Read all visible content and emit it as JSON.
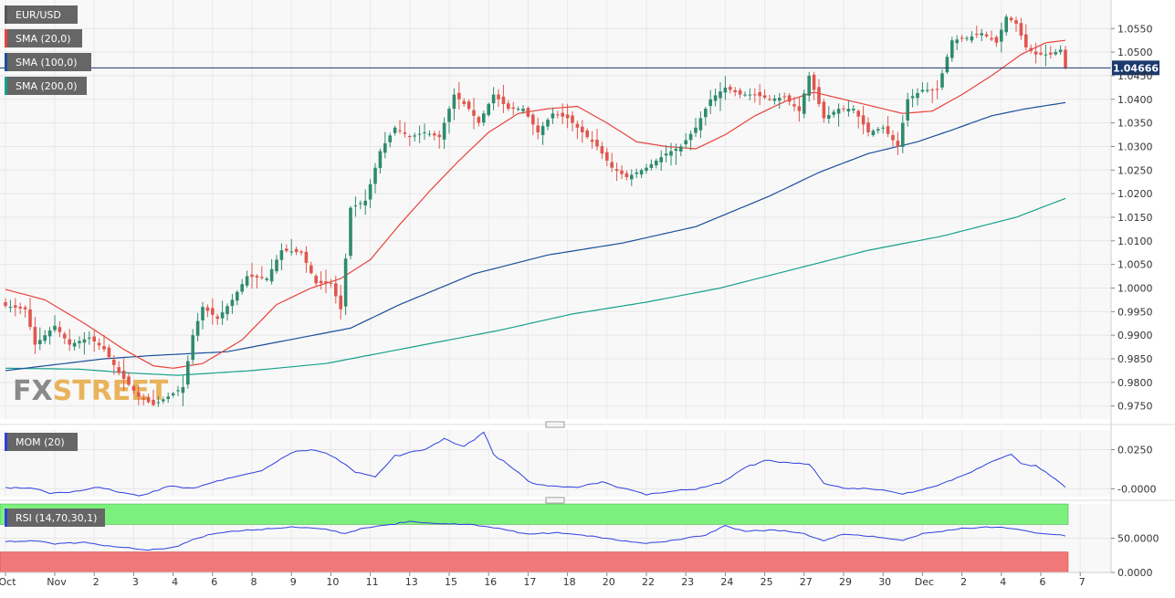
{
  "colors": {
    "bull": "#2e8b6e",
    "bear": "#e0564d",
    "sma20": "#e8433a",
    "sma100": "#1a4f9c",
    "sma200": "#17a08c",
    "mom": "#2f3fe0",
    "rsi": "#2f3fe0",
    "rsi_overbought": "#7cf07c",
    "rsi_oversold": "#f07878",
    "price_line": "#1a3a6e",
    "legend_bg": "#666666"
  },
  "watermark": {
    "fx": "FX",
    "street": "STREET"
  },
  "chart_data": [
    {
      "type": "candlestick",
      "instrument": "EUR/USD",
      "ylim": [
        0.973,
        1.0595
      ],
      "y_ticks": [
        "1.0550",
        "1.0500",
        "1.0450",
        "1.0400",
        "1.0350",
        "1.0300",
        "1.0250",
        "1.0200",
        "1.0150",
        "1.0100",
        "1.0050",
        "1.0000",
        "0.9950",
        "0.9900",
        "0.9850",
        "0.9800",
        "0.9750"
      ],
      "current_price": 1.04666,
      "current_price_label": "1.04666",
      "x_tick_labels": [
        {
          "label": "Oct",
          "i": 0
        },
        {
          "label": "Nov",
          "i": 10
        },
        {
          "label": "2",
          "i": 18
        },
        {
          "label": "3",
          "i": 26
        },
        {
          "label": "4",
          "i": 34
        },
        {
          "label": "6",
          "i": 42
        },
        {
          "label": "8",
          "i": 50
        },
        {
          "label": "9",
          "i": 58
        },
        {
          "label": "10",
          "i": 66
        },
        {
          "label": "11",
          "i": 74
        },
        {
          "label": "13",
          "i": 82
        },
        {
          "label": "15",
          "i": 90
        },
        {
          "label": "16",
          "i": 98
        },
        {
          "label": "17",
          "i": 106
        },
        {
          "label": "18",
          "i": 114
        },
        {
          "label": "20",
          "i": 122
        },
        {
          "label": "22",
          "i": 130
        },
        {
          "label": "23",
          "i": 138
        },
        {
          "label": "24",
          "i": 146
        },
        {
          "label": "25",
          "i": 154
        },
        {
          "label": "27",
          "i": 162
        },
        {
          "label": "29",
          "i": 170
        },
        {
          "label": "30",
          "i": 178
        },
        {
          "label": "Dec",
          "i": 186
        },
        {
          "label": "2",
          "i": 194
        },
        {
          "label": "4",
          "i": 202
        },
        {
          "label": "6",
          "i": 210
        },
        {
          "label": "7",
          "i": 218
        }
      ],
      "legend": [
        {
          "label": "EUR/USD",
          "color": "#555555"
        },
        {
          "label": "SMA (20,0)",
          "color": "#e8433a"
        },
        {
          "label": "SMA (100,0)",
          "color": "#1a4f9c"
        },
        {
          "label": "SMA (200,0)",
          "color": "#17a08c"
        }
      ],
      "close_anchors": [
        [
          0,
          0.9962
        ],
        [
          4,
          0.9955
        ],
        [
          6,
          0.988
        ],
        [
          10,
          0.992
        ],
        [
          13,
          0.988
        ],
        [
          17,
          0.9895
        ],
        [
          20,
          0.987
        ],
        [
          23,
          0.982
        ],
        [
          27,
          0.977
        ],
        [
          30,
          0.9752
        ],
        [
          33,
          0.977
        ],
        [
          36,
          0.979
        ],
        [
          38,
          0.99
        ],
        [
          40,
          0.996
        ],
        [
          43,
          0.9935
        ],
        [
          46,
          0.9975
        ],
        [
          49,
          1.0025
        ],
        [
          53,
          1.002
        ],
        [
          56,
          1.008
        ],
        [
          60,
          1.0075
        ],
        [
          63,
          1.001
        ],
        [
          66,
          1.001
        ],
        [
          68,
          0.9955
        ],
        [
          70,
          1.017
        ],
        [
          73,
          1.0185
        ],
        [
          76,
          1.029
        ],
        [
          79,
          1.034
        ],
        [
          82,
          1.032
        ],
        [
          85,
          1.033
        ],
        [
          88,
          1.032
        ],
        [
          91,
          1.041
        ],
        [
          94,
          1.038
        ],
        [
          96,
          1.035
        ],
        [
          99,
          1.041
        ],
        [
          102,
          1.038
        ],
        [
          105,
          1.038
        ],
        [
          108,
          1.033
        ],
        [
          111,
          1.037
        ],
        [
          114,
          1.036
        ],
        [
          117,
          1.033
        ],
        [
          120,
          1.03
        ],
        [
          123,
          1.0255
        ],
        [
          126,
          1.0235
        ],
        [
          130,
          1.0255
        ],
        [
          134,
          1.0285
        ],
        [
          137,
          1.03
        ],
        [
          140,
          1.034
        ],
        [
          143,
          1.04
        ],
        [
          146,
          1.0425
        ],
        [
          149,
          1.041
        ],
        [
          152,
          1.041
        ],
        [
          155,
          1.04
        ],
        [
          158,
          1.0405
        ],
        [
          161,
          1.0375
        ],
        [
          163,
          1.045
        ],
        [
          166,
          1.036
        ],
        [
          169,
          1.038
        ],
        [
          172,
          1.038
        ],
        [
          175,
          1.033
        ],
        [
          178,
          1.034
        ],
        [
          181,
          1.03
        ],
        [
          183,
          1.04
        ],
        [
          186,
          1.042
        ],
        [
          189,
          1.042
        ],
        [
          192,
          1.0525
        ],
        [
          195,
          1.053
        ],
        [
          198,
          1.054
        ],
        [
          201,
          1.052
        ],
        [
          203,
          1.0575
        ],
        [
          205,
          1.056
        ],
        [
          207,
          1.051
        ],
        [
          209,
          1.0495
        ],
        [
          212,
          1.0495
        ],
        [
          214,
          1.0505
        ],
        [
          215,
          1.0467
        ]
      ],
      "sma20_anchors": [
        [
          0,
          0.9997
        ],
        [
          8,
          0.9975
        ],
        [
          16,
          0.9925
        ],
        [
          24,
          0.987
        ],
        [
          30,
          0.9835
        ],
        [
          34,
          0.983
        ],
        [
          40,
          0.984
        ],
        [
          48,
          0.989
        ],
        [
          55,
          0.9965
        ],
        [
          62,
          1.0
        ],
        [
          68,
          1.002
        ],
        [
          74,
          1.006
        ],
        [
          80,
          1.0135
        ],
        [
          86,
          1.0205
        ],
        [
          92,
          1.027
        ],
        [
          98,
          1.033
        ],
        [
          104,
          1.037
        ],
        [
          110,
          1.038
        ],
        [
          116,
          1.0385
        ],
        [
          122,
          1.035
        ],
        [
          128,
          1.031
        ],
        [
          134,
          1.03
        ],
        [
          140,
          1.0295
        ],
        [
          146,
          1.0325
        ],
        [
          152,
          1.0365
        ],
        [
          158,
          1.0395
        ],
        [
          164,
          1.0415
        ],
        [
          170,
          1.04
        ],
        [
          176,
          1.0385
        ],
        [
          182,
          1.037
        ],
        [
          188,
          1.0375
        ],
        [
          194,
          1.041
        ],
        [
          200,
          1.045
        ],
        [
          206,
          1.0495
        ],
        [
          211,
          1.052
        ],
        [
          215,
          1.0525
        ]
      ],
      "sma100_anchors": [
        [
          0,
          0.9825
        ],
        [
          20,
          0.985
        ],
        [
          30,
          0.9857
        ],
        [
          45,
          0.9865
        ],
        [
          60,
          0.9895
        ],
        [
          70,
          0.9915
        ],
        [
          80,
          0.9965
        ],
        [
          95,
          1.003
        ],
        [
          110,
          1.007
        ],
        [
          125,
          1.0095
        ],
        [
          140,
          1.013
        ],
        [
          155,
          1.0195
        ],
        [
          165,
          1.0245
        ],
        [
          175,
          1.0285
        ],
        [
          185,
          1.031
        ],
        [
          192,
          1.0335
        ],
        [
          200,
          1.0365
        ],
        [
          207,
          1.038
        ],
        [
          215,
          1.0393
        ]
      ],
      "sma200_anchors": [
        [
          0,
          0.983
        ],
        [
          15,
          0.9828
        ],
        [
          25,
          0.982
        ],
        [
          35,
          0.9815
        ],
        [
          50,
          0.9825
        ],
        [
          65,
          0.984
        ],
        [
          80,
          0.987
        ],
        [
          100,
          0.991
        ],
        [
          115,
          0.9945
        ],
        [
          130,
          0.997
        ],
        [
          145,
          1.0
        ],
        [
          160,
          1.004
        ],
        [
          175,
          1.008
        ],
        [
          190,
          1.011
        ],
        [
          205,
          1.015
        ],
        [
          215,
          1.019
        ]
      ]
    },
    {
      "type": "line",
      "name": "MOM (20)",
      "ylim": [
        -0.005,
        0.0375
      ],
      "y_ticks": [
        {
          "value": 0.025,
          "label": "0.0250"
        },
        {
          "value": 0.0,
          "label": "-0.0000"
        }
      ],
      "anchors": [
        [
          0,
          0.001
        ],
        [
          6,
          0.0
        ],
        [
          9,
          -0.003
        ],
        [
          14,
          -0.002
        ],
        [
          19,
          0.0015
        ],
        [
          24,
          -0.0025
        ],
        [
          27,
          -0.0045
        ],
        [
          33,
          0.0015
        ],
        [
          38,
          0.0
        ],
        [
          44,
          0.006
        ],
        [
          52,
          0.0115
        ],
        [
          58,
          0.023
        ],
        [
          62,
          0.0255
        ],
        [
          67,
          0.02
        ],
        [
          71,
          0.011
        ],
        [
          75,
          0.0075
        ],
        [
          79,
          0.021
        ],
        [
          85,
          0.025
        ],
        [
          89,
          0.032
        ],
        [
          93,
          0.027
        ],
        [
          97,
          0.036
        ],
        [
          99,
          0.022
        ],
        [
          103,
          0.013
        ],
        [
          107,
          0.003
        ],
        [
          112,
          0.0015
        ],
        [
          116,
          0.001
        ],
        [
          121,
          0.004
        ],
        [
          126,
          0.0
        ],
        [
          130,
          -0.0035
        ],
        [
          134,
          -0.002
        ],
        [
          140,
          0.0
        ],
        [
          146,
          0.005
        ],
        [
          150,
          0.0135
        ],
        [
          154,
          0.018
        ],
        [
          158,
          0.017
        ],
        [
          163,
          0.0155
        ],
        [
          166,
          0.004
        ],
        [
          170,
          0.0
        ],
        [
          174,
          0.0005
        ],
        [
          178,
          -0.001
        ],
        [
          182,
          -0.003
        ],
        [
          187,
          0.0
        ],
        [
          190,
          0.003
        ],
        [
          194,
          0.008
        ],
        [
          198,
          0.014
        ],
        [
          201,
          0.0185
        ],
        [
          204,
          0.022
        ],
        [
          206,
          0.016
        ],
        [
          209,
          0.0145
        ],
        [
          212,
          0.0085
        ],
        [
          215,
          0.0015
        ]
      ]
    },
    {
      "type": "line",
      "name": "RSI (14,70,30,1)",
      "ylim": [
        0,
        100
      ],
      "y_ticks": [
        {
          "value": 50,
          "label": "50.0000"
        },
        {
          "value": 0,
          "label": "0.0000"
        }
      ],
      "bands": {
        "upper": 70,
        "lower": 30
      },
      "anchors": [
        [
          0,
          45
        ],
        [
          6,
          46
        ],
        [
          10,
          42
        ],
        [
          16,
          44
        ],
        [
          22,
          38
        ],
        [
          28,
          33
        ],
        [
          34,
          36
        ],
        [
          38,
          48
        ],
        [
          43,
          58
        ],
        [
          50,
          62
        ],
        [
          58,
          66
        ],
        [
          64,
          64
        ],
        [
          69,
          57
        ],
        [
          72,
          64
        ],
        [
          76,
          68
        ],
        [
          82,
          74
        ],
        [
          88,
          71
        ],
        [
          94,
          70
        ],
        [
          100,
          64
        ],
        [
          106,
          56
        ],
        [
          112,
          58
        ],
        [
          118,
          54
        ],
        [
          124,
          48
        ],
        [
          130,
          42
        ],
        [
          136,
          48
        ],
        [
          142,
          54
        ],
        [
          146,
          68
        ],
        [
          150,
          60
        ],
        [
          156,
          62
        ],
        [
          162,
          57
        ],
        [
          166,
          46
        ],
        [
          170,
          56
        ],
        [
          176,
          52
        ],
        [
          182,
          47
        ],
        [
          186,
          57
        ],
        [
          190,
          60
        ],
        [
          194,
          64
        ],
        [
          198,
          66
        ],
        [
          202,
          66
        ],
        [
          206,
          62
        ],
        [
          210,
          57
        ],
        [
          215,
          54
        ]
      ]
    }
  ]
}
